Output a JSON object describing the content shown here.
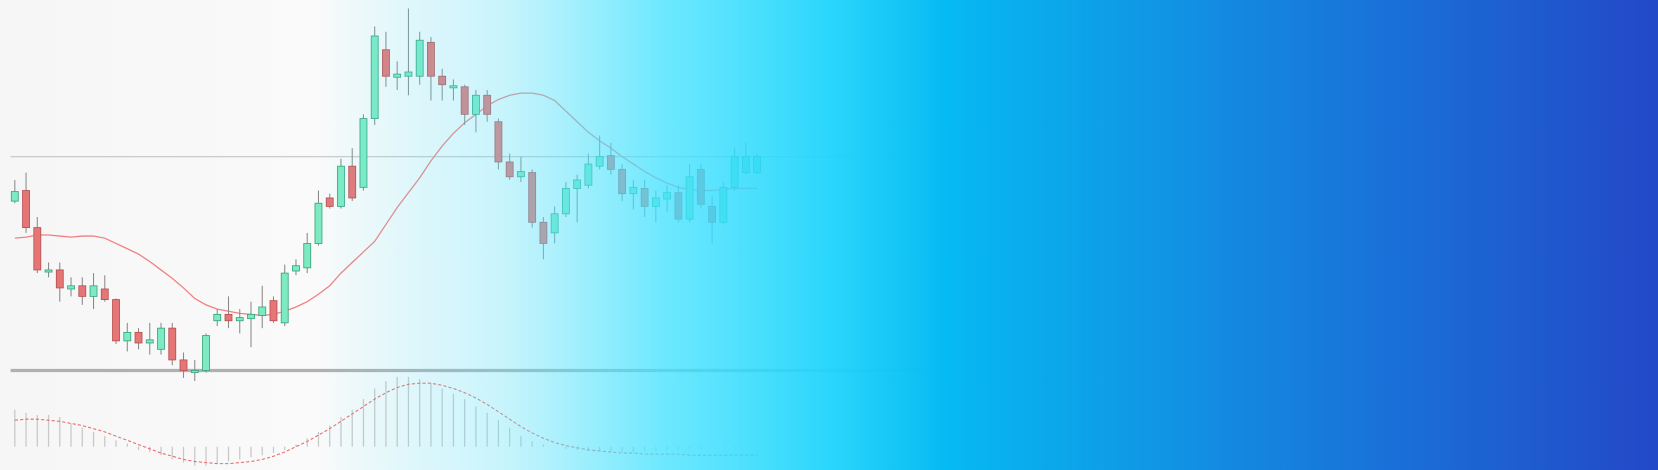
{
  "chart_data": [
    {
      "type": "candlestick",
      "open": [
        170,
        180,
        145,
        103,
        105,
        87,
        90,
        80,
        87,
        77,
        38,
        46,
        36,
        30,
        50,
        20,
        8,
        10,
        57,
        63,
        57,
        59,
        62,
        76,
        55,
        104,
        107,
        130,
        173,
        165,
        203,
        183,
        248,
        313,
        287,
        288,
        288,
        320,
        288,
        277,
        278,
        252,
        270,
        245,
        207,
        193,
        197,
        150,
        140,
        158,
        182,
        185,
        203,
        213,
        200,
        177,
        182,
        165,
        172,
        178,
        153,
        200,
        165,
        150,
        183,
        197,
        197
      ],
      "high": [
        190,
        197,
        155,
        112,
        112,
        98,
        98,
        102,
        100,
        78,
        55,
        50,
        55,
        55,
        55,
        27,
        20,
        45,
        68,
        80,
        68,
        75,
        90,
        80,
        110,
        115,
        140,
        180,
        177,
        210,
        220,
        252,
        335,
        330,
        302,
        352,
        330,
        325,
        295,
        285,
        280,
        275,
        275,
        248,
        215,
        212,
        200,
        155,
        165,
        188,
        195,
        215,
        232,
        225,
        205,
        190,
        190,
        180,
        185,
        185,
        205,
        205,
        175,
        188,
        220,
        225,
        215
      ],
      "low": [
        168,
        140,
        102,
        98,
        75,
        80,
        72,
        68,
        75,
        35,
        28,
        30,
        25,
        25,
        15,
        3,
        0,
        8,
        52,
        50,
        45,
        32,
        50,
        55,
        52,
        100,
        102,
        128,
        163,
        163,
        170,
        180,
        242,
        278,
        275,
        270,
        280,
        265,
        265,
        265,
        242,
        235,
        245,
        200,
        190,
        188,
        145,
        115,
        130,
        155,
        150,
        182,
        200,
        195,
        170,
        162,
        155,
        150,
        160,
        150,
        150,
        163,
        130,
        148,
        180,
        195,
        195
      ],
      "close": [
        179,
        145,
        105,
        105,
        88,
        90,
        80,
        90,
        77,
        38,
        46,
        36,
        39,
        50,
        20,
        10,
        10,
        43,
        63,
        57,
        60,
        63,
        70,
        57,
        102,
        109,
        130,
        168,
        165,
        203,
        173,
        248,
        326,
        288,
        290,
        292,
        322,
        288,
        280,
        279,
        252,
        270,
        252,
        207,
        193,
        198,
        150,
        130,
        158,
        182,
        190,
        205,
        212,
        200,
        177,
        183,
        165,
        173,
        178,
        153,
        193,
        167,
        150,
        183,
        212,
        212,
        212
      ],
      "up_color": "#7eeac2",
      "down_color": "#e67676",
      "ma": {
        "values": [
          135,
          136,
          138,
          138,
          137,
          136,
          137,
          137,
          135,
          130,
          125,
          120,
          113,
          105,
          97,
          88,
          78,
          72,
          68,
          66,
          64,
          63,
          62,
          63,
          66,
          70,
          75,
          82,
          90,
          102,
          112,
          122,
          132,
          148,
          164,
          178,
          192,
          208,
          222,
          234,
          244,
          252,
          260,
          266,
          270,
          272,
          272,
          270,
          265,
          255,
          245,
          235,
          227,
          220,
          212,
          205,
          198,
          192,
          187,
          183,
          181,
          180,
          180,
          181,
          182,
          182,
          182
        ],
        "color": "#f08080"
      },
      "reference_line": 212,
      "ylim": [
        0,
        360
      ]
    },
    {
      "type": "bar",
      "values": [
        35,
        32,
        30,
        30,
        28,
        22,
        18,
        14,
        10,
        6,
        3,
        -3,
        -5,
        -8,
        -12,
        -15,
        -18,
        -18,
        -16,
        -14,
        -12,
        -10,
        -8,
        -6,
        -3,
        2,
        8,
        14,
        20,
        28,
        35,
        45,
        55,
        62,
        66,
        66,
        64,
        60,
        55,
        50,
        45,
        38,
        32,
        25,
        18,
        10,
        5,
        2,
        0,
        -2,
        -3,
        -4,
        -4,
        -5,
        -5,
        -5,
        -4,
        -4,
        -3,
        -3,
        -2,
        -2,
        -1,
        -1,
        -1,
        -1,
        -1
      ],
      "color": "#c8c8c8",
      "signal": {
        "values": [
          25,
          26,
          26,
          25,
          24,
          22,
          20,
          17,
          14,
          10,
          6,
          2,
          -2,
          -6,
          -9,
          -12,
          -14,
          -15,
          -16,
          -16,
          -15,
          -14,
          -12,
          -9,
          -5,
          0,
          5,
          11,
          17,
          24,
          31,
          38,
          45,
          51,
          56,
          59,
          60,
          60,
          58,
          55,
          51,
          46,
          40,
          33,
          26,
          19,
          13,
          8,
          4,
          1,
          -1,
          -3,
          -4,
          -5,
          -6,
          -6,
          -7,
          -7,
          -7,
          -7,
          -8,
          -8,
          -8,
          -8,
          -8,
          -8,
          -8
        ],
        "color": "#e86a6a"
      },
      "ylim": [
        -25,
        70
      ]
    }
  ]
}
